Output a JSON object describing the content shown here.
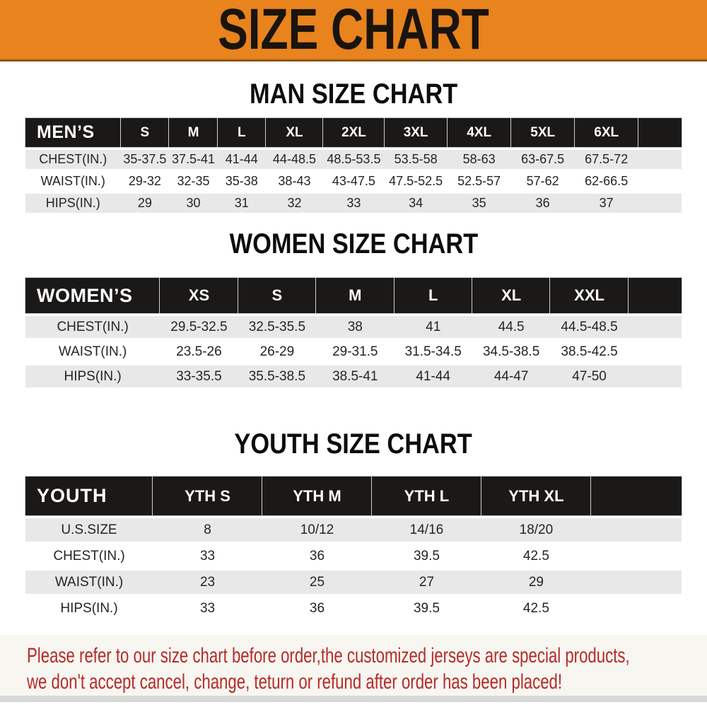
{
  "banner": {
    "title": "SIZE CHART"
  },
  "colors": {
    "banner_bg": "#E8831D",
    "banner_border": "#8E5715",
    "banner_text": "#1A140F",
    "heading_text": "#0D0D0D",
    "table_header_bg": "#1B1917",
    "table_header_text": "#FFFFFF",
    "row_stripe_gray": "#E8E8E8",
    "row_stripe_white": "#FFFFFF",
    "value_text": "#242424",
    "footer_bg": "#F8F6F1",
    "footer_text": "#B32B28"
  },
  "sections": [
    {
      "id": "man",
      "heading": "MAN SIZE CHART",
      "table": {
        "header": [
          "MEN’S",
          "S",
          "M",
          "L",
          "XL",
          "2XL",
          "3XL",
          "4XL",
          "5XL",
          "6XL"
        ],
        "rows": [
          [
            "CHEST(IN.)",
            "35-37.5",
            "37.5-41",
            "41-44",
            "44-48.5",
            "48.5-53.5",
            "53.5-58",
            "58-63",
            "63-67.5",
            "67.5-72"
          ],
          [
            "WAIST(IN.)",
            "29-32",
            "32-35",
            "35-38",
            "38-43",
            "43-47.5",
            "47.5-52.5",
            "52.5-57",
            "57-62",
            "62-66.5"
          ],
          [
            "HIPS(IN.)",
            "29",
            "30",
            "31",
            "32",
            "33",
            "34",
            "35",
            "36",
            "37"
          ]
        ]
      }
    },
    {
      "id": "women",
      "heading": "WOMEN SIZE CHART",
      "table": {
        "header": [
          "WOMEN’S",
          "XS",
          "S",
          "M",
          "L",
          "XL",
          "XXL"
        ],
        "rows": [
          [
            "CHEST(IN.)",
            "29.5-32.5",
            "32.5-35.5",
            "38",
            "41",
            "44.5",
            "44.5-48.5"
          ],
          [
            "WAIST(IN.)",
            "23.5-26",
            "26-29",
            "29-31.5",
            "31.5-34.5",
            "34.5-38.5",
            "38.5-42.5"
          ],
          [
            "HIPS(IN.)",
            "33-35.5",
            "35.5-38.5",
            "38.5-41",
            "41-44",
            "44-47",
            "47-50"
          ]
        ]
      }
    },
    {
      "id": "youth",
      "heading": "YOUTH SIZE CHART",
      "table": {
        "header": [
          "YOUTH",
          "YTH S",
          "YTH M",
          "YTH L",
          "YTH XL"
        ],
        "rows": [
          [
            "U.S.SIZE",
            "8",
            "10/12",
            "14/16",
            "18/20"
          ],
          [
            "CHEST(IN.)",
            "33",
            "36",
            "39.5",
            "42.5"
          ],
          [
            "WAIST(IN.)",
            "23",
            "25",
            "27",
            "29"
          ],
          [
            "HIPS(IN.)",
            "33",
            "36",
            "39.5",
            "42.5"
          ]
        ]
      }
    }
  ],
  "footer": {
    "lines": [
      "Please refer to our size chart before order,the customized jerseys are special products,",
      "we don't accept cancel, change, teturn or refund after order has been placed!"
    ]
  }
}
